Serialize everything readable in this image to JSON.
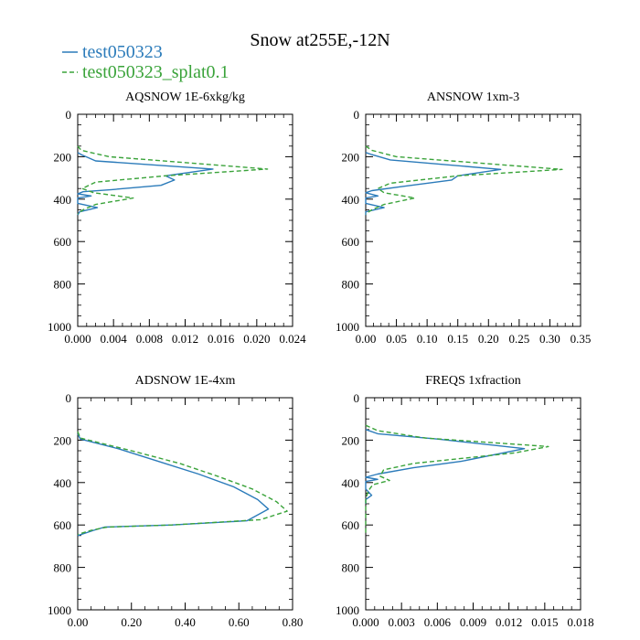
{
  "figure": {
    "title": "Snow at255E,-12N",
    "legend": [
      {
        "label": "test050323",
        "color": "#2b7bba",
        "dash": "solid"
      },
      {
        "label": "test050323_splat0.1",
        "color": "#3aa33a",
        "dash": "dashed"
      }
    ]
  },
  "chart_data": [
    {
      "type": "line",
      "title": "AQSNOW  1E-6xkg/kg",
      "xlim": [
        0,
        0.024
      ],
      "xticks": [
        "0.000",
        "0.004",
        "0.008",
        "0.012",
        "0.016",
        "0.020",
        "0.024"
      ],
      "ylim": [
        0,
        1000
      ],
      "y_inverted": true,
      "yticks": [
        "0",
        "200",
        "400",
        "600",
        "800",
        "1000"
      ],
      "series": [
        {
          "name": "test050323",
          "points": [
            [
              0.0,
              180
            ],
            [
              0.0004,
              190
            ],
            [
              0.002,
              220
            ],
            [
              0.0151,
              258
            ],
            [
              0.0098,
              290
            ],
            [
              0.0108,
              310
            ],
            [
              0.0093,
              335
            ],
            [
              0.0038,
              355
            ],
            [
              0.0006,
              365
            ],
            [
              0.0,
              375
            ],
            [
              0.0015,
              385
            ],
            [
              0.0,
              395
            ],
            [
              0.0,
              420
            ],
            [
              0.0022,
              440
            ],
            [
              0.0002,
              460
            ],
            [
              0.0,
              475
            ]
          ]
        },
        {
          "name": "test050323_splat0.1",
          "points": [
            [
              0.0,
              150
            ],
            [
              0.0004,
              170
            ],
            [
              0.0035,
              200
            ],
            [
              0.0212,
              258
            ],
            [
              0.0098,
              290
            ],
            [
              0.002,
              320
            ],
            [
              0.0005,
              350
            ],
            [
              0.0018,
              370
            ],
            [
              0.0062,
              395
            ],
            [
              0.002,
              425
            ],
            [
              0.0006,
              450
            ],
            [
              0.0,
              470
            ]
          ]
        }
      ]
    },
    {
      "type": "line",
      "title": "ANSNOW  1xm-3",
      "xlim": [
        0,
        0.35
      ],
      "xticks": [
        "0.00",
        "0.05",
        "0.10",
        "0.15",
        "0.20",
        "0.25",
        "0.30",
        "0.35"
      ],
      "ylim": [
        0,
        1000
      ],
      "y_inverted": true,
      "yticks": [
        "0",
        "200",
        "400",
        "600",
        "800",
        "1000"
      ],
      "series": [
        {
          "name": "test050323",
          "points": [
            [
              0.0,
              180
            ],
            [
              0.01,
              190
            ],
            [
              0.04,
              215
            ],
            [
              0.22,
              260
            ],
            [
              0.15,
              290
            ],
            [
              0.14,
              310
            ],
            [
              0.06,
              340
            ],
            [
              0.01,
              360
            ],
            [
              0.0,
              370
            ],
            [
              0.02,
              385
            ],
            [
              0.0,
              395
            ],
            [
              0.0,
              420
            ],
            [
              0.03,
              440
            ],
            [
              0.0,
              460
            ],
            [
              0.0,
              475
            ]
          ]
        },
        {
          "name": "test050323_splat0.1",
          "points": [
            [
              0.0,
              150
            ],
            [
              0.01,
              170
            ],
            [
              0.05,
              200
            ],
            [
              0.32,
              260
            ],
            [
              0.15,
              290
            ],
            [
              0.04,
              325
            ],
            [
              0.02,
              350
            ],
            [
              0.03,
              370
            ],
            [
              0.08,
              395
            ],
            [
              0.03,
              425
            ],
            [
              0.01,
              450
            ],
            [
              0.0,
              470
            ]
          ]
        }
      ]
    },
    {
      "type": "line",
      "title": "ADSNOW  1E-4xm",
      "xlim": [
        0,
        0.8
      ],
      "xticks": [
        "0.00",
        "0.20",
        "0.40",
        "0.60",
        "0.80"
      ],
      "ylim": [
        0,
        1000
      ],
      "y_inverted": true,
      "yticks": [
        "0",
        "200",
        "400",
        "600",
        "800",
        "1000"
      ],
      "series": [
        {
          "name": "test050323",
          "points": [
            [
              0.0,
              170
            ],
            [
              0.01,
              195
            ],
            [
              0.15,
              240
            ],
            [
              0.3,
              300
            ],
            [
              0.45,
              360
            ],
            [
              0.58,
              420
            ],
            [
              0.67,
              480
            ],
            [
              0.71,
              525
            ],
            [
              0.63,
              580
            ],
            [
              0.35,
              600
            ],
            [
              0.1,
              610
            ],
            [
              0.06,
              625
            ],
            [
              0.0,
              650
            ]
          ]
        },
        {
          "name": "test050323_splat0.1",
          "points": [
            [
              0.0,
              160
            ],
            [
              0.01,
              190
            ],
            [
              0.2,
              250
            ],
            [
              0.38,
              310
            ],
            [
              0.52,
              370
            ],
            [
              0.65,
              430
            ],
            [
              0.74,
              490
            ],
            [
              0.78,
              535
            ],
            [
              0.68,
              575
            ],
            [
              0.35,
              600
            ],
            [
              0.11,
              610
            ],
            [
              0.05,
              625
            ],
            [
              0.0,
              645
            ]
          ]
        }
      ]
    },
    {
      "type": "line",
      "title": "FREQS  1xfraction",
      "xlim": [
        0,
        0.018
      ],
      "xticks": [
        "0.000",
        "0.003",
        "0.006",
        "0.009",
        "0.012",
        "0.015",
        "0.018"
      ],
      "ylim": [
        0,
        1000
      ],
      "y_inverted": true,
      "yticks": [
        "0",
        "200",
        "400",
        "600",
        "800",
        "1000"
      ],
      "series": [
        {
          "name": "test050323",
          "points": [
            [
              0.0,
              150
            ],
            [
              0.001,
              170
            ],
            [
              0.006,
              195
            ],
            [
              0.0133,
              240
            ],
            [
              0.008,
              300
            ],
            [
              0.004,
              330
            ],
            [
              0.001,
              360
            ],
            [
              0.0,
              375
            ],
            [
              0.001,
              385
            ],
            [
              0.0,
              395
            ],
            [
              0.0,
              430
            ],
            [
              0.0005,
              460
            ],
            [
              0.0,
              480
            ],
            [
              0.0,
              500
            ]
          ]
        },
        {
          "name": "test050323_splat0.1",
          "points": [
            [
              0.0,
              130
            ],
            [
              0.001,
              155
            ],
            [
              0.005,
              190
            ],
            [
              0.0153,
              230
            ],
            [
              0.0125,
              260
            ],
            [
              0.004,
              310
            ],
            [
              0.0015,
              340
            ],
            [
              0.0012,
              370
            ],
            [
              0.002,
              390
            ],
            [
              0.0006,
              410
            ],
            [
              0.0002,
              440
            ],
            [
              0.0,
              480
            ],
            [
              0.0,
              640
            ]
          ]
        }
      ]
    }
  ]
}
